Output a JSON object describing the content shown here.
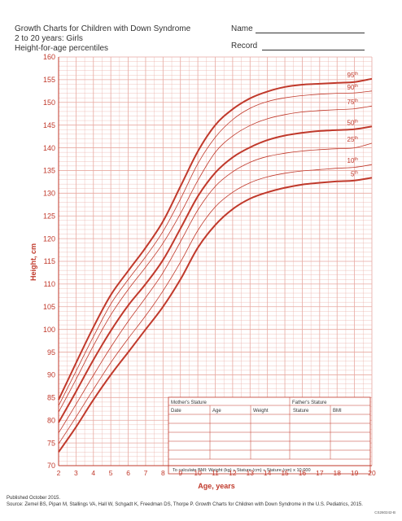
{
  "header": {
    "line1": "Growth Charts for Children with Down Syndrome",
    "line2": "2 to 20 years: Girls",
    "line3": "Height-for-age percentiles",
    "name_label": "Name",
    "record_label": "Record"
  },
  "footer": {
    "published": "Published October 2015.",
    "source": "Source: Zemel BS, Pipan M, Stallings VA, Hall W, Schgadt K, Freedman DS, Thorpe P. Growth Charts for Children with Down Syndrome in the U.S. Pediatrics, 2015.",
    "code": "CS260242-B"
  },
  "colors": {
    "line": "#c0392b",
    "grid": "#e8a9a1",
    "axis_text": "#c0392b"
  },
  "table": {
    "mothers_stature": "Mother's Stature",
    "fathers_stature": "Father's Stature",
    "columns": [
      "Date",
      "Age",
      "Weight",
      "Stature",
      "BMI"
    ],
    "bmi_note": "To calculate BMI: Weight (kg) ÷ Stature (cm) ÷ Stature (cm) x 10,000"
  },
  "chart_data": {
    "type": "line",
    "xlabel": "Age, years",
    "ylabel": "Height, cm",
    "xlim": [
      2,
      20
    ],
    "ylim": [
      70,
      160
    ],
    "x_ticks": [
      2,
      3,
      4,
      5,
      6,
      7,
      8,
      9,
      10,
      11,
      12,
      13,
      14,
      15,
      16,
      17,
      18,
      19,
      20
    ],
    "y_ticks": [
      70,
      75,
      80,
      85,
      90,
      95,
      100,
      105,
      110,
      115,
      120,
      125,
      130,
      135,
      140,
      145,
      150,
      155,
      160
    ],
    "grid": true,
    "x": [
      2,
      3,
      4,
      5,
      6,
      7,
      8,
      9,
      10,
      11,
      12,
      13,
      14,
      15,
      16,
      17,
      18,
      19,
      20
    ],
    "series": [
      {
        "name": "5",
        "label_base": "5",
        "label_sup": "th",
        "emphasis": true,
        "values": [
          73.0,
          78.5,
          84.5,
          90.0,
          95.0,
          100.0,
          105.0,
          111.0,
          118.0,
          123.0,
          126.5,
          128.8,
          130.2,
          131.2,
          131.9,
          132.3,
          132.6,
          132.8,
          133.4
        ]
      },
      {
        "name": "10",
        "label_base": "10",
        "label_sup": "th",
        "emphasis": false,
        "values": [
          74.8,
          80.7,
          86.8,
          92.7,
          98.0,
          103.0,
          108.5,
          114.8,
          121.8,
          127.0,
          130.2,
          132.3,
          133.6,
          134.4,
          134.9,
          135.2,
          135.5,
          135.7,
          136.3
        ]
      },
      {
        "name": "25",
        "label_base": "25",
        "label_sup": "th",
        "emphasis": false,
        "values": [
          77.2,
          83.5,
          89.9,
          96.1,
          101.8,
          107.0,
          112.5,
          119.3,
          126.3,
          131.5,
          134.7,
          136.8,
          138.1,
          138.8,
          139.3,
          139.6,
          139.8,
          140.0,
          141.0
        ]
      },
      {
        "name": "50",
        "label_base": "50",
        "label_sup": "th",
        "emphasis": true,
        "values": [
          79.5,
          86.3,
          93.3,
          99.7,
          105.3,
          110.0,
          115.3,
          122.2,
          129.3,
          134.5,
          137.9,
          140.1,
          141.7,
          142.7,
          143.3,
          143.7,
          143.9,
          144.1,
          144.7
        ]
      },
      {
        "name": "75",
        "label_base": "75",
        "label_sup": "th",
        "emphasis": false,
        "values": [
          81.8,
          89.0,
          96.4,
          103.2,
          108.8,
          113.7,
          119.0,
          125.5,
          132.8,
          139.0,
          142.6,
          144.9,
          146.4,
          147.3,
          147.9,
          148.2,
          148.4,
          148.6,
          149.2
        ]
      },
      {
        "name": "90",
        "label_base": "90",
        "label_sup": "th",
        "emphasis": false,
        "values": [
          83.2,
          90.8,
          98.4,
          105.6,
          111.0,
          116.0,
          121.6,
          128.7,
          136.5,
          142.3,
          146.2,
          148.7,
          150.2,
          151.0,
          151.5,
          151.8,
          152.0,
          152.1,
          152.5
        ]
      },
      {
        "name": "95",
        "label_base": "95",
        "label_sup": "th",
        "emphasis": true,
        "values": [
          84.5,
          92.6,
          100.5,
          107.6,
          112.9,
          118.0,
          123.8,
          131.5,
          139.2,
          145.0,
          148.5,
          150.9,
          152.4,
          153.4,
          153.9,
          154.1,
          154.3,
          154.5,
          155.2
        ]
      }
    ]
  }
}
